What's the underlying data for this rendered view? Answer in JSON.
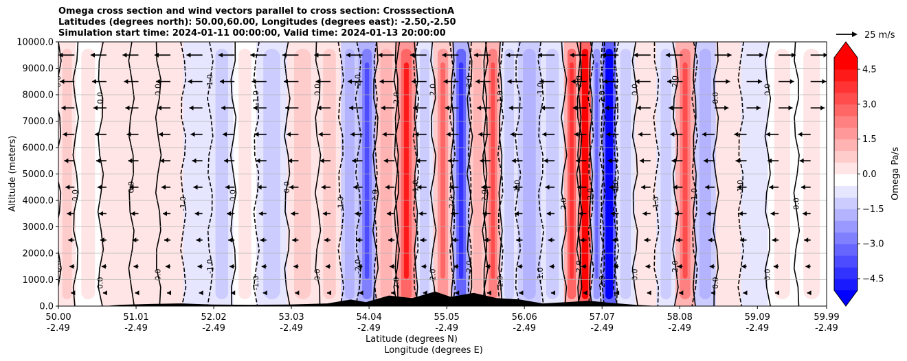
{
  "chart_data": {
    "type": "heatmap",
    "title_lines": [
      "Omega cross section and wind vectors parallel to cross section: CrosssectionA",
      "Latitudes (degrees north): 50.00,60.00, Longitudes (degrees east): -2.50,-2.50",
      "Simulation start time: 2024-01-11 00:00:00, Valid time: 2024-01-13 20:00:00"
    ],
    "xlabel_line1": "Latitude (degrees N)",
    "xlabel_line2": "Longitude (degrees E)",
    "ylabel": "Altitude (meters)",
    "ylim": [
      0,
      10000
    ],
    "xlim": [
      50.0,
      59.99
    ],
    "x_ticks": [
      {
        "lat": "50.00",
        "lon": "-2.49",
        "value": 50.0
      },
      {
        "lat": "51.01",
        "lon": "-2.49",
        "value": 51.01
      },
      {
        "lat": "52.02",
        "lon": "-2.49",
        "value": 52.02
      },
      {
        "lat": "53.03",
        "lon": "-2.49",
        "value": 53.03
      },
      {
        "lat": "54.04",
        "lon": "-2.49",
        "value": 54.04
      },
      {
        "lat": "55.05",
        "lon": "-2.49",
        "value": 55.05
      },
      {
        "lat": "56.06",
        "lon": "-2.49",
        "value": 56.06
      },
      {
        "lat": "57.07",
        "lon": "-2.49",
        "value": 57.07
      },
      {
        "lat": "58.08",
        "lon": "-2.49",
        "value": 58.08
      },
      {
        "lat": "59.09",
        "lon": "-2.49",
        "value": 59.09
      },
      {
        "lat": "59.99",
        "lon": "-2.49",
        "value": 59.99
      }
    ],
    "y_ticks": [
      {
        "label": "0.0",
        "value": 0
      },
      {
        "label": "1000.0",
        "value": 1000
      },
      {
        "label": "2000.0",
        "value": 2000
      },
      {
        "label": "3000.0",
        "value": 3000
      },
      {
        "label": "4000.0",
        "value": 4000
      },
      {
        "label": "5000.0",
        "value": 5000
      },
      {
        "label": "6000.0",
        "value": 6000
      },
      {
        "label": "7000.0",
        "value": 7000
      },
      {
        "label": "8000.0",
        "value": 8000
      },
      {
        "label": "9000.0",
        "value": 9000
      },
      {
        "label": "10000.0",
        "value": 10000
      }
    ],
    "grid": true,
    "colorbar": {
      "label": "Omega Pa/s",
      "range": [
        -5.0,
        5.0
      ],
      "ticks": [
        {
          "label": "4.5",
          "value": 4.5
        },
        {
          "label": "3.0",
          "value": 3.0
        },
        {
          "label": "1.5",
          "value": 1.5
        },
        {
          "label": "0.0",
          "value": 0.0
        },
        {
          "label": "−1.5",
          "value": -1.5
        },
        {
          "label": "−3.0",
          "value": -3.0
        },
        {
          "label": "−4.5",
          "value": -4.5
        }
      ],
      "extend": "both",
      "colormap": "bwr"
    },
    "quiver_key": {
      "label": "25 m/s",
      "speed": 25
    },
    "contour_labels": [
      "0.0",
      "1.0",
      "-1.0",
      "2.0",
      "-2.0"
    ],
    "omega_columns": [
      {
        "lat": 50.1,
        "value": 0.8
      },
      {
        "lat": 50.35,
        "value": 0.4
      },
      {
        "lat": 50.75,
        "value": 0.6
      },
      {
        "lat": 51.15,
        "value": 0.5
      },
      {
        "lat": 51.45,
        "value": 0.7
      },
      {
        "lat": 51.8,
        "value": -0.6
      },
      {
        "lat": 52.15,
        "value": -0.9
      },
      {
        "lat": 52.4,
        "value": 0.4
      },
      {
        "lat": 52.75,
        "value": -1.2
      },
      {
        "lat": 53.2,
        "value": 0.8
      },
      {
        "lat": 53.55,
        "value": 1.2
      },
      {
        "lat": 53.8,
        "value": -1.4
      },
      {
        "lat": 54.0,
        "value": -2.5
      },
      {
        "lat": 54.25,
        "value": 1.6
      },
      {
        "lat": 54.55,
        "value": 3.2
      },
      {
        "lat": 54.75,
        "value": -1.2
      },
      {
        "lat": 55.0,
        "value": 2.0
      },
      {
        "lat": 55.25,
        "value": -2.8
      },
      {
        "lat": 55.45,
        "value": 1.5
      },
      {
        "lat": 55.65,
        "value": 2.6
      },
      {
        "lat": 55.85,
        "value": -1.0
      },
      {
        "lat": 56.1,
        "value": -1.4
      },
      {
        "lat": 56.45,
        "value": -1.2
      },
      {
        "lat": 56.7,
        "value": 2.8
      },
      {
        "lat": 56.85,
        "value": 5.2
      },
      {
        "lat": 57.0,
        "value": -2.0
      },
      {
        "lat": 57.15,
        "value": -5.2
      },
      {
        "lat": 57.35,
        "value": -1.0
      },
      {
        "lat": 57.65,
        "value": 0.6
      },
      {
        "lat": 57.9,
        "value": -1.2
      },
      {
        "lat": 58.15,
        "value": 2.4
      },
      {
        "lat": 58.4,
        "value": -1.4
      },
      {
        "lat": 58.7,
        "value": 0.7
      },
      {
        "lat": 59.05,
        "value": -0.5
      },
      {
        "lat": 59.4,
        "value": 0.3
      },
      {
        "lat": 59.8,
        "value": 0.4
      }
    ],
    "terrain": [
      {
        "lat": 50.0,
        "height": 0
      },
      {
        "lat": 50.6,
        "height": 0
      },
      {
        "lat": 50.8,
        "height": 50
      },
      {
        "lat": 51.2,
        "height": 80
      },
      {
        "lat": 51.6,
        "height": 100
      },
      {
        "lat": 52.0,
        "height": 60
      },
      {
        "lat": 52.5,
        "height": 50
      },
      {
        "lat": 53.0,
        "height": 60
      },
      {
        "lat": 53.5,
        "height": 100
      },
      {
        "lat": 53.8,
        "height": 250
      },
      {
        "lat": 54.0,
        "height": 150
      },
      {
        "lat": 54.3,
        "height": 400
      },
      {
        "lat": 54.6,
        "height": 300
      },
      {
        "lat": 54.9,
        "height": 550
      },
      {
        "lat": 55.1,
        "height": 350
      },
      {
        "lat": 55.4,
        "height": 500
      },
      {
        "lat": 55.7,
        "height": 300
      },
      {
        "lat": 56.0,
        "height": 250
      },
      {
        "lat": 56.3,
        "height": 100
      },
      {
        "lat": 56.6,
        "height": 150
      },
      {
        "lat": 56.9,
        "height": 200
      },
      {
        "lat": 57.2,
        "height": 120
      },
      {
        "lat": 57.5,
        "height": 50
      },
      {
        "lat": 57.8,
        "height": 0
      },
      {
        "lat": 59.99,
        "height": 0
      }
    ]
  }
}
